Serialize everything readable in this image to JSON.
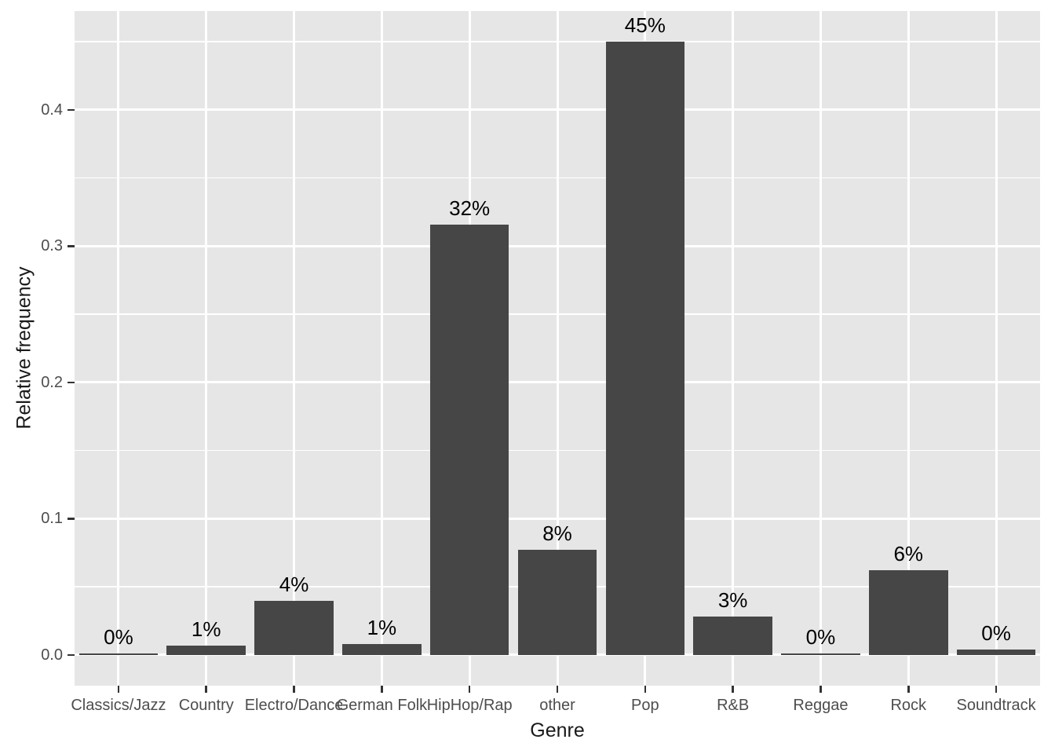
{
  "chart_data": {
    "type": "bar",
    "title": "",
    "xlabel": "Genre",
    "ylabel": "Relative frequency",
    "categories": [
      "Classics/Jazz",
      "Country",
      "Electro/Dance",
      "German Folk",
      "HipHop/Rap",
      "other",
      "Pop",
      "R&B",
      "Reggae",
      "Rock",
      "Soundtrack"
    ],
    "values": [
      0.001,
      0.007,
      0.04,
      0.008,
      0.316,
      0.077,
      0.45,
      0.028,
      0.001,
      0.062,
      0.004
    ],
    "bar_labels": [
      "0%",
      "1%",
      "4%",
      "1%",
      "32%",
      "8%",
      "45%",
      "3%",
      "0%",
      "6%",
      "0%"
    ],
    "yticks": [
      {
        "value": 0.0,
        "label": "0.0"
      },
      {
        "value": 0.1,
        "label": "0.1"
      },
      {
        "value": 0.2,
        "label": "0.2"
      },
      {
        "value": 0.3,
        "label": "0.3"
      },
      {
        "value": 0.4,
        "label": "0.4"
      }
    ],
    "minor_yticks": [
      0.05,
      0.15,
      0.25,
      0.35,
      0.45
    ],
    "ylim": [
      -0.0225,
      0.4725
    ],
    "grid": true,
    "legend_position": "none",
    "colors": {
      "bar": "#464646",
      "panel_bg": "#e6e6e6",
      "grid": "#ffffff",
      "tick_label": "#4d4d4d",
      "axis_title": "#1a1a1a",
      "bar_label": "#000000",
      "tick_mark": "#333333",
      "background": "#ffffff"
    }
  }
}
